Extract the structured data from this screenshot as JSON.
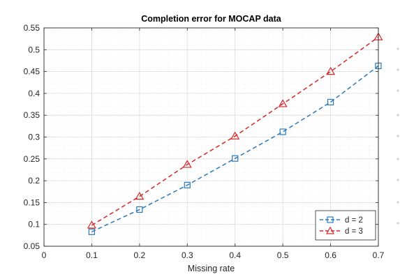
{
  "chart_data": {
    "type": "line",
    "title": "Completion error for MOCAP data",
    "xlabel": "Missing rate",
    "ylabel": "",
    "xlim": [
      0,
      0.7
    ],
    "ylim": [
      0.05,
      0.55
    ],
    "xticks": [
      0,
      0.1,
      0.2,
      0.3,
      0.4,
      0.5,
      0.6,
      0.7
    ],
    "xtick_labels": [
      "0",
      "0.1",
      "0.2",
      "0.3",
      "0.4",
      "0.5",
      "0.6",
      "0.7"
    ],
    "yticks": [
      0.05,
      0.1,
      0.15,
      0.2,
      0.25,
      0.3,
      0.35,
      0.4,
      0.45,
      0.5,
      0.55
    ],
    "ytick_labels": [
      "0.05",
      "0.1",
      "0.15",
      "0.2",
      "0.25",
      "0.3",
      "0.35",
      "0.4",
      "0.45",
      "0.5",
      "0.55"
    ],
    "grid": true,
    "minor_grid": true,
    "legend_position": "bottom-right",
    "x": [
      0.1,
      0.2,
      0.3,
      0.4,
      0.5,
      0.6,
      0.7
    ],
    "series": [
      {
        "name": "d = 2",
        "values": [
          0.083,
          0.134,
          0.19,
          0.251,
          0.312,
          0.38,
          0.463
        ],
        "color": "#2a7ab8",
        "marker": "square",
        "line_style": "dashed"
      },
      {
        "name": "d = 3",
        "values": [
          0.098,
          0.164,
          0.237,
          0.302,
          0.376,
          0.45,
          0.529
        ],
        "color": "#d62728",
        "marker": "triangle",
        "line_style": "dashed"
      }
    ]
  }
}
